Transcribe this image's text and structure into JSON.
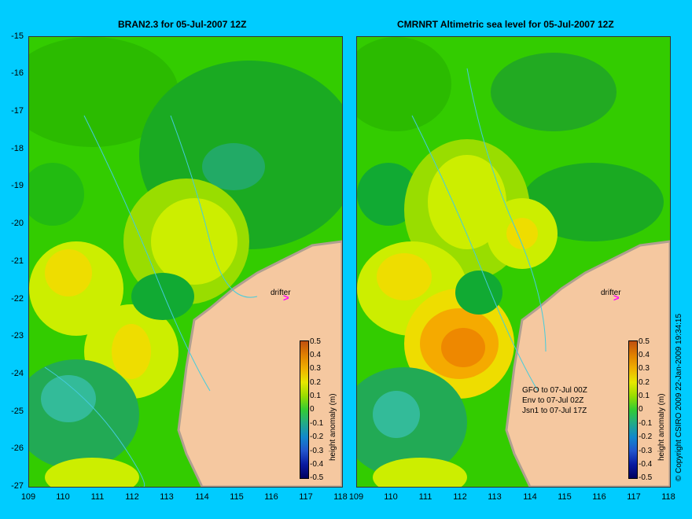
{
  "left_panel": {
    "title": "BRAN2.3 for 05-Jul-2007 12Z",
    "drifter_label": "drifter",
    "colorbar_label": "height anomaly (m)"
  },
  "right_panel": {
    "title": "CMRNRT Altimetric sea level  for 05-Jul-2007 12Z",
    "drifter_label": "drifter",
    "colorbar_label": "height anomaly (m)",
    "satellite_notes": [
      "GFO to 07-Jul 00Z",
      "Env to 07-Jul 02Z",
      "Jsn1 to 07-Jul 17Z"
    ]
  },
  "y_ticks": [
    "-15",
    "-16",
    "-17",
    "-18",
    "-19",
    "-20",
    "-21",
    "-22",
    "-23",
    "-24",
    "-25",
    "-26",
    "-27"
  ],
  "x_ticks": [
    "109",
    "110",
    "111",
    "112",
    "113",
    "114",
    "115",
    "116",
    "117",
    "118"
  ],
  "colorbar_ticks": [
    "0.5",
    "0.4",
    "0.3",
    "0.2",
    "0.1",
    "0",
    "-0.1",
    "-0.2",
    "-0.3",
    "-0.4",
    "-0.5"
  ],
  "copyright": "© Copyright CSIRO 2009   22-Jan-2009 19:34:15",
  "colors": {
    "background": "#00ccff",
    "land": "#f5c8a0",
    "coast": "#b0a090"
  }
}
